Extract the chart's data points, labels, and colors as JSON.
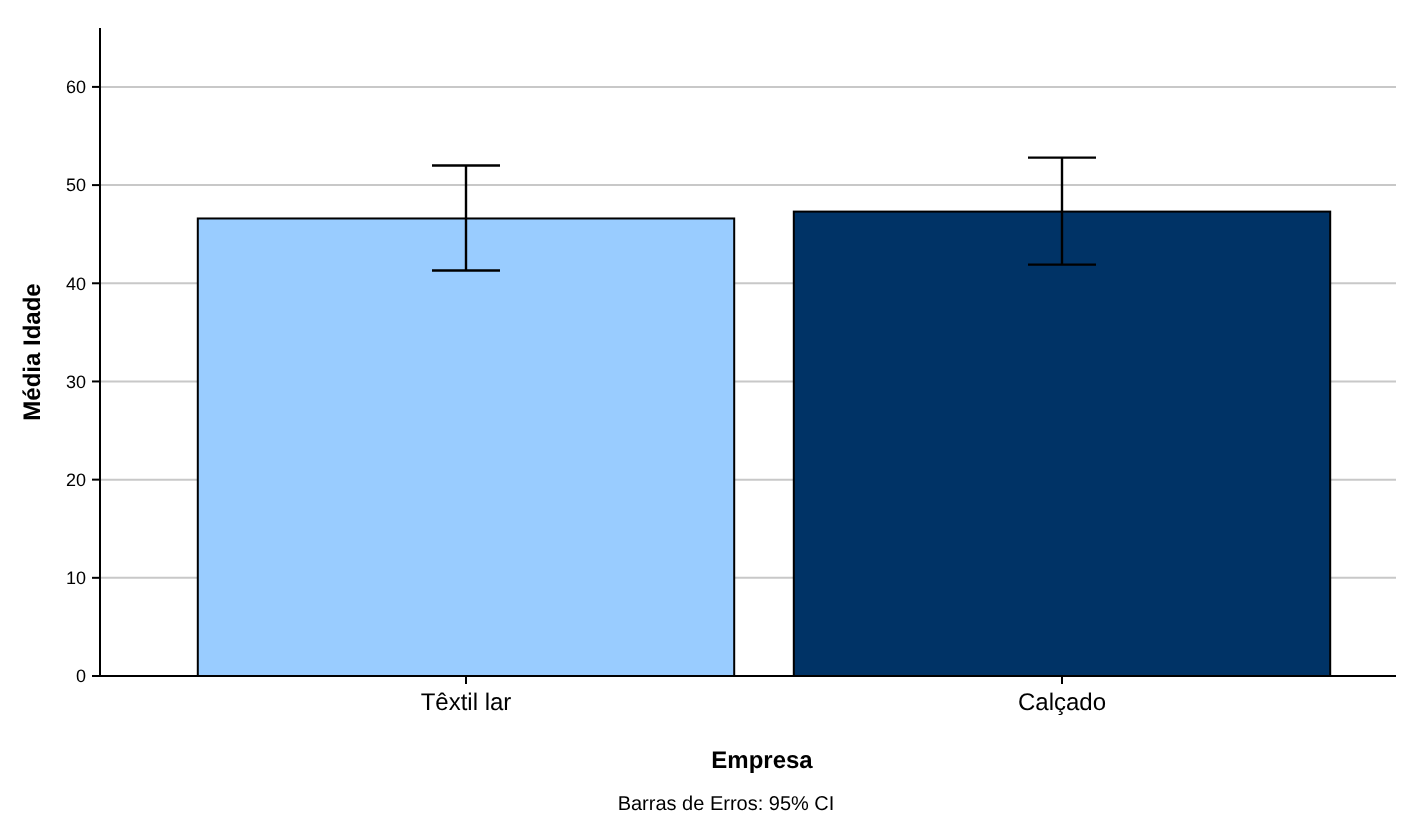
{
  "chart_data": {
    "type": "bar",
    "categories": [
      "Têxtil lar",
      "Calçado"
    ],
    "colors": [
      "#99ccff",
      "#003366"
    ],
    "values": [
      46.6,
      47.3
    ],
    "errors": [
      [
        41.3,
        52.0
      ],
      [
        41.9,
        52.8
      ]
    ],
    "ylim": [
      0,
      66
    ],
    "yticks": [
      0,
      10,
      20,
      30,
      40,
      50,
      60
    ],
    "grid": "y",
    "xlabel": "Empresa",
    "ylabel": "Média Idade",
    "annotations": [
      "Barras de Erros: 95% CI"
    ]
  }
}
